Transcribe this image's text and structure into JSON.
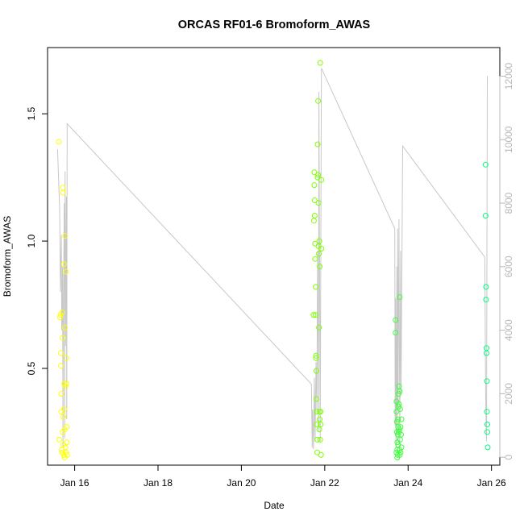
{
  "chart_data": {
    "type": "scatter",
    "title": "ORCAS RF01-6 Bromoform_AWAS",
    "xlabel": "Date",
    "ylabel": "Bromoform_AWAS",
    "x_ticks": [
      "Jan 16",
      "Jan 18",
      "Jan 20",
      "Jan 22",
      "Jan 24",
      "Jan 26"
    ],
    "x_tick_days": [
      16,
      18,
      20,
      22,
      24,
      26
    ],
    "xlim": [
      15.35,
      26.2
    ],
    "ylim": [
      0.12,
      1.76
    ],
    "y_ticks": [
      0.5,
      1.0,
      1.5
    ],
    "y_tick_labels": [
      "0.5",
      "1.0",
      "1.5"
    ],
    "y2lim": [
      -250,
      12900
    ],
    "y2_ticks": [
      0,
      2000,
      4000,
      6000,
      8000,
      10000,
      12000
    ],
    "y2_tick_labels": [
      "0",
      "2000",
      "4000",
      "6000",
      "8000",
      "10000",
      "12000"
    ],
    "grid": false,
    "colors": {
      "points_flight_1": "#ffff00",
      "points_flight_2": "#7fff00",
      "points_flight_3": "#3fff3f",
      "points_flight_4": "#00ff7f",
      "altitude_line": "#c8c8c8",
      "axes": "#000000"
    },
    "series": [
      {
        "color": "#ffff00",
        "points": [
          [
            15.62,
            1.39
          ],
          [
            15.63,
            0.22
          ],
          [
            15.65,
            0.7
          ],
          [
            15.66,
            0.71
          ],
          [
            15.67,
            0.56
          ],
          [
            15.67,
            0.51
          ],
          [
            15.68,
            0.4
          ],
          [
            15.68,
            0.33
          ],
          [
            15.69,
            0.18
          ],
          [
            15.7,
            0.17
          ],
          [
            15.7,
            0.72
          ],
          [
            15.71,
            0.62
          ],
          [
            15.71,
            0.25
          ],
          [
            15.72,
            1.21
          ],
          [
            15.72,
            1.19
          ],
          [
            15.73,
            0.31
          ],
          [
            15.73,
            0.2
          ],
          [
            15.74,
            0.16
          ],
          [
            15.74,
            0.91
          ],
          [
            15.75,
            0.44
          ],
          [
            15.75,
            0.34
          ],
          [
            15.76,
            0.26
          ],
          [
            15.76,
            0.15
          ],
          [
            15.77,
            1.02
          ],
          [
            15.77,
            0.66
          ],
          [
            15.78,
            0.43
          ],
          [
            15.78,
            0.19
          ],
          [
            15.79,
            0.17
          ],
          [
            15.79,
            0.88
          ],
          [
            15.8,
            0.54
          ],
          [
            15.8,
            0.44
          ],
          [
            15.81,
            0.27
          ],
          [
            15.81,
            0.21
          ],
          [
            15.82,
            0.16
          ]
        ]
      },
      {
        "color": "#7fff00",
        "points": [
          [
            21.73,
            0.71
          ],
          [
            21.74,
            1.08
          ],
          [
            21.75,
            1.27
          ],
          [
            21.75,
            1.22
          ],
          [
            21.76,
            1.16
          ],
          [
            21.76,
            1.1
          ],
          [
            21.77,
            0.99
          ],
          [
            21.77,
            0.93
          ],
          [
            21.78,
            0.82
          ],
          [
            21.78,
            0.71
          ],
          [
            21.79,
            0.55
          ],
          [
            21.79,
            0.54
          ],
          [
            21.8,
            0.49
          ],
          [
            21.8,
            0.38
          ],
          [
            21.81,
            0.33
          ],
          [
            21.81,
            0.28
          ],
          [
            21.82,
            0.22
          ],
          [
            21.82,
            0.17
          ],
          [
            21.83,
            1.25
          ],
          [
            21.83,
            1.38
          ],
          [
            21.84,
            1.26
          ],
          [
            21.84,
            1.55
          ],
          [
            21.85,
            1.15
          ],
          [
            21.85,
            0.98
          ],
          [
            21.86,
            0.95
          ],
          [
            21.86,
            0.66
          ],
          [
            21.87,
            0.33
          ],
          [
            21.87,
            0.26
          ],
          [
            21.87,
            1.0
          ],
          [
            21.88,
            0.9
          ],
          [
            21.88,
            0.3
          ],
          [
            21.89,
            0.22
          ],
          [
            21.89,
            1.7
          ],
          [
            21.9,
            0.33
          ],
          [
            21.9,
            0.28
          ],
          [
            21.91,
            0.16
          ],
          [
            21.92,
            1.24
          ],
          [
            21.92,
            0.97
          ]
        ]
      },
      {
        "color": "#3fff3f",
        "points": [
          [
            23.7,
            0.69
          ],
          [
            23.7,
            0.64
          ],
          [
            23.72,
            0.37
          ],
          [
            23.72,
            0.33
          ],
          [
            23.73,
            0.29
          ],
          [
            23.73,
            0.25
          ],
          [
            23.74,
            0.21
          ],
          [
            23.74,
            0.18
          ],
          [
            23.75,
            0.16
          ],
          [
            23.75,
            0.24
          ],
          [
            23.76,
            0.27
          ],
          [
            23.76,
            0.3
          ],
          [
            23.77,
            0.35
          ],
          [
            23.77,
            0.4
          ],
          [
            23.78,
            0.43
          ],
          [
            23.78,
            0.36
          ],
          [
            23.79,
            0.26
          ],
          [
            23.79,
            0.18
          ],
          [
            23.8,
            0.16
          ],
          [
            23.8,
            0.78
          ],
          [
            23.81,
            0.34
          ],
          [
            23.81,
            0.22
          ],
          [
            23.82,
            0.17
          ],
          [
            23.83,
            0.24
          ],
          [
            23.84,
            0.19
          ],
          [
            23.72,
            0.17
          ],
          [
            23.74,
            0.15
          ],
          [
            23.76,
            0.2
          ],
          [
            23.78,
            0.25
          ],
          [
            23.8,
            0.41
          ],
          [
            23.82,
            0.27
          ],
          [
            23.84,
            0.3
          ]
        ]
      },
      {
        "color": "#00ff7f",
        "points": [
          [
            25.86,
            1.3
          ],
          [
            25.86,
            1.1
          ],
          [
            25.87,
            0.82
          ],
          [
            25.87,
            0.77
          ],
          [
            25.88,
            0.58
          ],
          [
            25.88,
            0.56
          ],
          [
            25.89,
            0.45
          ],
          [
            25.89,
            0.33
          ],
          [
            25.9,
            0.28
          ],
          [
            25.9,
            0.25
          ],
          [
            25.91,
            0.19
          ]
        ]
      }
    ],
    "altitude_line": [
      [
        15.59,
        9700
      ],
      [
        15.64,
        7800
      ],
      [
        15.66,
        5200
      ],
      [
        15.68,
        7000
      ],
      [
        15.69,
        4000
      ],
      [
        15.71,
        6000
      ],
      [
        15.72,
        300
      ],
      [
        15.73,
        4500
      ],
      [
        15.75,
        8000
      ],
      [
        15.76,
        600
      ],
      [
        15.77,
        9000
      ],
      [
        15.78,
        3500
      ],
      [
        15.8,
        8200
      ],
      [
        15.81,
        1200
      ],
      [
        15.82,
        10500
      ],
      [
        21.68,
        2300
      ],
      [
        21.7,
        300
      ],
      [
        21.71,
        1500
      ],
      [
        21.73,
        250
      ],
      [
        21.75,
        2500
      ],
      [
        21.77,
        500
      ],
      [
        21.79,
        3000
      ],
      [
        21.81,
        1500
      ],
      [
        21.83,
        6500
      ],
      [
        21.85,
        800
      ],
      [
        21.86,
        11500
      ],
      [
        21.89,
        500
      ],
      [
        21.92,
        12250
      ],
      [
        23.68,
        7200
      ],
      [
        23.69,
        1000
      ],
      [
        23.7,
        5000
      ],
      [
        23.71,
        300
      ],
      [
        23.73,
        6000
      ],
      [
        23.74,
        500
      ],
      [
        23.75,
        7200
      ],
      [
        23.76,
        1500
      ],
      [
        23.78,
        7500
      ],
      [
        23.8,
        300
      ],
      [
        23.82,
        6500
      ],
      [
        23.83,
        2000
      ],
      [
        23.87,
        9800
      ],
      [
        25.84,
        6300
      ],
      [
        25.86,
        2000
      ],
      [
        25.88,
        500
      ],
      [
        25.9,
        12000
      ]
    ]
  }
}
